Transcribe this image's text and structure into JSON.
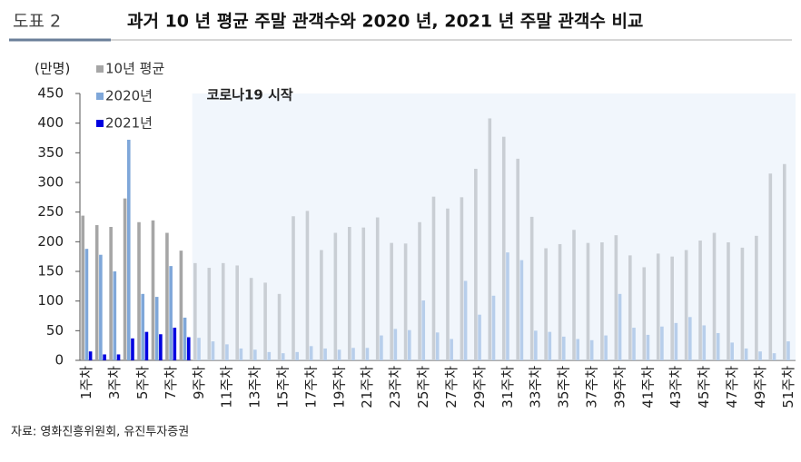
{
  "header": {
    "label": "도표 2",
    "title": "과거 10 년 평균 주말 관객수와 2020 년, 2021 년 주말 관객수 비교"
  },
  "source": "자료: 영화진흥위원회, 유진투자증권",
  "chart_data": {
    "type": "bar",
    "y_unit": "(만명)",
    "annotation": "코로나19 시작",
    "highlight_from_index": 8,
    "legend": "upper-left",
    "categories": [
      "1주차",
      null,
      "3주차",
      null,
      "5주차",
      null,
      "7주차",
      null,
      "9주차",
      null,
      "11주차",
      null,
      "13주차",
      null,
      "15주차",
      null,
      "17주차",
      null,
      "19주차",
      null,
      "21주차",
      null,
      "23주차",
      null,
      "25주차",
      null,
      "27주차",
      null,
      "29주차",
      null,
      "31주차",
      null,
      "33주차",
      null,
      "35주차",
      null,
      "37주차",
      null,
      "39주차",
      null,
      "41주차",
      null,
      "43주차",
      null,
      "45주차",
      null,
      "47주차",
      null,
      "49주차",
      null,
      "51주차"
    ],
    "series": [
      {
        "name": "10년 평균",
        "color": "#a6a6a6",
        "values": [
          244,
          228,
          225,
          273,
          233,
          236,
          215,
          185,
          164,
          156,
          164,
          160,
          139,
          131,
          112,
          243,
          252,
          186,
          215,
          225,
          224,
          241,
          198,
          197,
          233,
          276,
          256,
          275,
          323,
          408,
          377,
          340,
          242,
          189,
          196,
          220,
          198,
          199,
          211,
          177,
          157,
          180,
          175,
          186,
          202,
          215,
          199,
          190,
          210,
          315,
          331
        ]
      },
      {
        "name": "2020년",
        "color": "#7fa7d9",
        "values": [
          188,
          178,
          150,
          372,
          112,
          107,
          159,
          72,
          38,
          32,
          27,
          20,
          18,
          14,
          12,
          14,
          24,
          20,
          18,
          21,
          21,
          42,
          53,
          51,
          101,
          47,
          36,
          134,
          77,
          109,
          182,
          169,
          50,
          48,
          40,
          36,
          34,
          42,
          112,
          55,
          43,
          57,
          63,
          73,
          59,
          46,
          30,
          20,
          15,
          12,
          32
        ]
      },
      {
        "name": "2021년",
        "color": "#0000e0",
        "values": [
          15,
          10,
          10,
          37,
          48,
          44,
          55,
          39,
          null,
          null,
          null,
          null,
          null,
          null,
          null,
          null,
          null,
          null,
          null,
          null,
          null,
          null,
          null,
          null,
          null,
          null,
          null,
          null,
          null,
          null,
          null,
          null,
          null,
          null,
          null,
          null,
          null,
          null,
          null,
          null,
          null,
          null,
          null,
          null,
          null,
          null,
          null,
          null,
          null,
          null,
          null
        ]
      }
    ],
    "ylim": [
      0,
      450
    ],
    "yticks": [
      0,
      50,
      100,
      150,
      200,
      250,
      300,
      350,
      400,
      450
    ],
    "grid": false
  }
}
